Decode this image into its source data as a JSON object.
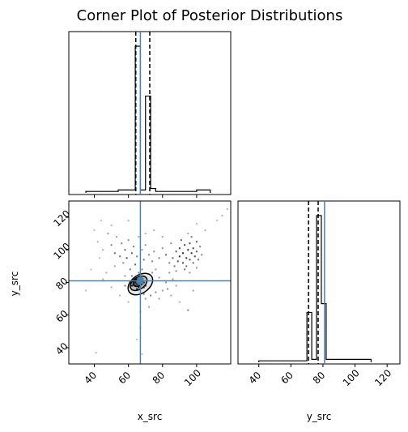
{
  "chart_data": {
    "type": "corner",
    "title": "Corner Plot of Posterior Distributions",
    "truth_color": "#4682b4",
    "parameters": [
      "x_src",
      "y_src"
    ],
    "truths": {
      "x_src": 67,
      "y_src": 81
    },
    "quantiles": {
      "x_src": [
        64.3,
        66.2,
        72.5
      ],
      "y_src": [
        71.0,
        75.5,
        77.0
      ]
    },
    "x_src_hist": {
      "xlim": [
        25,
        120
      ],
      "ticks": [
        40,
        60,
        80,
        100
      ],
      "tick_labels": [
        "40",
        "60",
        "80",
        "100"
      ],
      "bins": [
        [
          35,
          38,
          0.01
        ],
        [
          38,
          42,
          0.01
        ],
        [
          42,
          46,
          0.01
        ],
        [
          46,
          50,
          0.01
        ],
        [
          50,
          54,
          0.01
        ],
        [
          54,
          58,
          0.02
        ],
        [
          58,
          61,
          0.02
        ],
        [
          61,
          64,
          0.02
        ],
        [
          64,
          67,
          1.0
        ],
        [
          67,
          70,
          0.02
        ],
        [
          70,
          73,
          0.66
        ],
        [
          73,
          76,
          0.03
        ],
        [
          76,
          80,
          0.01
        ],
        [
          80,
          84,
          0.01
        ],
        [
          84,
          88,
          0.01
        ],
        [
          88,
          92,
          0.01
        ],
        [
          92,
          96,
          0.01
        ],
        [
          96,
          100,
          0.01
        ],
        [
          100,
          104,
          0.02
        ],
        [
          104,
          108,
          0.02
        ]
      ]
    },
    "y_src_hist": {
      "xlim": [
        27,
        128
      ],
      "ticks": [
        40,
        60,
        80,
        100,
        120
      ],
      "tick_labels": [
        "40",
        "60",
        "80",
        "100",
        "120"
      ],
      "bins": [
        [
          40,
          44,
          0.01
        ],
        [
          44,
          48,
          0.01
        ],
        [
          48,
          52,
          0.01
        ],
        [
          52,
          56,
          0.01
        ],
        [
          56,
          60,
          0.01
        ],
        [
          60,
          64,
          0.01
        ],
        [
          64,
          68,
          0.01
        ],
        [
          68,
          70,
          0.01
        ],
        [
          70,
          73,
          0.34
        ],
        [
          73,
          76,
          0.02
        ],
        [
          76,
          79,
          1.0
        ],
        [
          79,
          82,
          0.4
        ],
        [
          82,
          86,
          0.02
        ],
        [
          86,
          90,
          0.02
        ],
        [
          90,
          94,
          0.02
        ],
        [
          94,
          98,
          0.02
        ],
        [
          98,
          102,
          0.02
        ],
        [
          102,
          106,
          0.02
        ],
        [
          106,
          110,
          0.02
        ]
      ]
    },
    "joint": {
      "xlabel": "x_src",
      "ylabel": "y_src",
      "xlim": [
        25,
        120
      ],
      "ylim": [
        30,
        130
      ],
      "xticks": [
        40,
        60,
        80,
        100
      ],
      "xtick_labels": [
        "40",
        "60",
        "80",
        "100"
      ],
      "yticks": [
        40,
        60,
        80,
        100,
        120
      ],
      "ytick_labels": [
        "40",
        "60",
        "80",
        "100",
        "120"
      ],
      "points": [
        [
          43,
          95,
          0.25
        ],
        [
          45,
          100,
          0.3
        ],
        [
          48,
          110,
          0.4
        ],
        [
          50,
          103,
          0.5
        ],
        [
          52,
          98,
          0.6
        ],
        [
          53,
          108,
          0.4
        ],
        [
          55,
          96,
          0.55
        ],
        [
          56,
          104,
          0.5
        ],
        [
          57,
          92,
          0.45
        ],
        [
          58,
          100,
          0.6
        ],
        [
          59,
          95,
          0.7
        ],
        [
          60,
          106,
          0.45
        ],
        [
          61,
          88,
          0.55
        ],
        [
          62,
          98,
          0.65
        ],
        [
          63,
          102,
          0.5
        ],
        [
          64,
          91,
          0.6
        ],
        [
          65,
          96,
          0.5
        ],
        [
          66,
          108,
          0.35
        ],
        [
          68,
          100,
          0.4
        ],
        [
          69,
          94,
          0.55
        ],
        [
          70,
          103,
          0.4
        ],
        [
          72,
          97,
          0.45
        ],
        [
          74,
          93,
          0.5
        ],
        [
          75,
          99,
          0.45
        ],
        [
          76,
          88,
          0.4
        ],
        [
          78,
          95,
          0.5
        ],
        [
          80,
          101,
          0.45
        ],
        [
          82,
          97,
          0.55
        ],
        [
          84,
          92,
          0.5
        ],
        [
          85,
          104,
          0.45
        ],
        [
          86,
          95,
          0.6
        ],
        [
          87,
          90,
          0.55
        ],
        [
          88,
          99,
          0.65
        ],
        [
          89,
          93,
          0.7
        ],
        [
          90,
          101,
          0.75
        ],
        [
          90,
          96,
          0.8
        ],
        [
          91,
          106,
          0.6
        ],
        [
          92,
          92,
          0.7
        ],
        [
          92,
          98,
          0.85
        ],
        [
          93,
          103,
          0.75
        ],
        [
          94,
          95,
          0.8
        ],
        [
          94,
          90,
          0.6
        ],
        [
          95,
          100,
          0.85
        ],
        [
          96,
          94,
          0.7
        ],
        [
          96,
          104,
          0.7
        ],
        [
          97,
          98,
          0.8
        ],
        [
          97,
          108,
          0.55
        ],
        [
          98,
          92,
          0.6
        ],
        [
          98,
          101,
          0.75
        ],
        [
          99,
          96,
          0.7
        ],
        [
          100,
          105,
          0.65
        ],
        [
          100,
          99,
          0.6
        ],
        [
          101,
          94,
          0.55
        ],
        [
          102,
          102,
          0.5
        ],
        [
          103,
          97,
          0.45
        ],
        [
          88,
          87,
          0.45
        ],
        [
          84,
          86,
          0.4
        ],
        [
          93,
          88,
          0.55
        ],
        [
          96,
          86,
          0.4
        ],
        [
          100,
          89,
          0.4
        ],
        [
          50,
          115,
          0.3
        ],
        [
          44,
          118,
          0.25
        ],
        [
          60,
          118,
          0.3
        ],
        [
          75,
          112,
          0.3
        ],
        [
          100,
          116,
          0.25
        ],
        [
          115,
          121,
          0.3
        ],
        [
          118,
          125,
          0.3
        ],
        [
          112,
          118,
          0.25
        ],
        [
          105,
          112,
          0.3
        ],
        [
          95,
          110,
          0.35
        ],
        [
          52,
          90,
          0.35
        ],
        [
          47,
          86,
          0.3
        ],
        [
          40,
          112,
          0.25
        ],
        [
          42,
          105,
          0.3
        ],
        [
          70,
          110,
          0.3
        ],
        [
          80,
          108,
          0.35
        ],
        [
          58,
          84,
          0.4
        ],
        [
          62,
          84,
          0.5
        ],
        [
          74,
          86,
          0.45
        ],
        [
          78,
          83,
          0.4
        ],
        [
          68,
          88,
          0.45
        ],
        [
          66,
          86,
          0.5
        ],
        [
          70,
          70,
          0.4
        ],
        [
          72,
          65,
          0.35
        ],
        [
          67,
          62,
          0.3
        ],
        [
          60,
          68,
          0.3
        ],
        [
          55,
          72,
          0.3
        ],
        [
          80,
          75,
          0.4
        ],
        [
          85,
          72,
          0.35
        ],
        [
          90,
          68,
          0.3
        ],
        [
          95,
          63,
          0.5
        ],
        [
          98,
          75,
          0.35
        ],
        [
          88,
          78,
          0.35
        ],
        [
          82,
          80,
          0.4
        ],
        [
          45,
          82,
          0.3
        ],
        [
          50,
          77,
          0.3
        ],
        [
          67,
          52,
          0.3
        ],
        [
          65,
          45,
          0.25
        ],
        [
          68,
          36,
          0.25
        ],
        [
          41,
          37,
          0.25
        ],
        [
          35,
          75,
          0.25
        ],
        [
          38,
          88,
          0.25
        ],
        [
          86,
          82,
          0.4
        ],
        [
          83,
          76,
          0.45
        ],
        [
          76,
          74,
          0.45
        ],
        [
          73,
          72,
          0.5
        ],
        [
          78,
          70,
          0.4
        ],
        [
          69,
          73,
          0.55
        ],
        [
          62,
          74,
          0.55
        ],
        [
          58,
          78,
          0.5
        ]
      ],
      "core_points": [
        [
          66,
          80
        ],
        [
          65,
          79
        ],
        [
          67,
          81
        ],
        [
          64,
          78
        ],
        [
          68,
          79
        ],
        [
          66,
          77
        ],
        [
          63,
          79
        ],
        [
          67,
          83
        ],
        [
          65,
          82
        ],
        [
          69,
          80
        ],
        [
          64,
          80
        ],
        [
          66,
          82
        ],
        [
          68,
          82
        ],
        [
          62,
          78
        ],
        [
          65,
          76
        ],
        [
          70,
          78
        ],
        [
          63,
          81
        ],
        [
          67,
          78
        ],
        [
          69,
          77
        ],
        [
          61,
          80
        ]
      ],
      "contours": [
        {
          "cx": 67,
          "cy": 79,
          "rx": 8,
          "ry": 5.5,
          "angle": -35
        },
        {
          "cx": 66,
          "cy": 79.5,
          "rx": 5.5,
          "ry": 3.6,
          "angle": -35
        },
        {
          "cx": 65.5,
          "cy": 80,
          "rx": 3.0,
          "ry": 2.2,
          "angle": -30
        }
      ]
    }
  }
}
